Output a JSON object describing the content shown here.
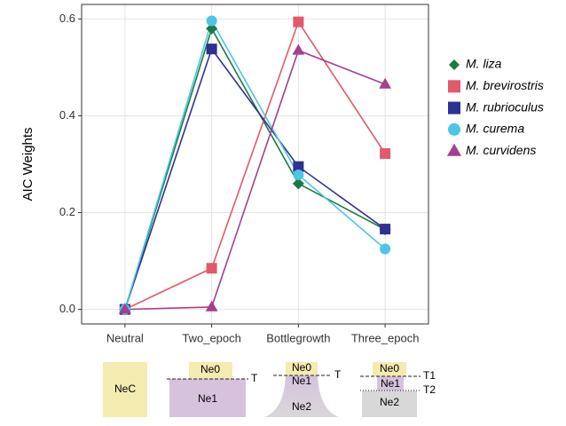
{
  "chart_data": {
    "type": "line",
    "y_label": "AIC Weights",
    "categories": [
      "Neutral",
      "Two_epoch",
      "Bottlegrowth",
      "Three_epoch"
    ],
    "series": [
      {
        "name": "M. liza",
        "color": "#1b7a3f",
        "marker": "diamond",
        "values": [
          0,
          0.58,
          0.26,
          0.165
        ]
      },
      {
        "name": "M. brevirostris",
        "color": "#e05a6c",
        "marker": "square",
        "values": [
          0,
          0.085,
          0.594,
          0.322
        ]
      },
      {
        "name": "M. rubrioculus",
        "color": "#2e3192",
        "marker": "square",
        "values": [
          0,
          0.538,
          0.295,
          0.166
        ]
      },
      {
        "name": "M. curema",
        "color": "#4cc5e6",
        "marker": "circle",
        "values": [
          0,
          0.596,
          0.278,
          0.125
        ]
      },
      {
        "name": "M. curvidens",
        "color": "#a63f8e",
        "marker": "triangle",
        "values": [
          0,
          0.005,
          0.535,
          0.465
        ]
      }
    ],
    "ylim": [
      -0.03,
      0.63
    ],
    "yticks": [
      {
        "value": 0,
        "label": "0.0"
      },
      0.2,
      0.4,
      0.6
    ],
    "grid": true,
    "legend": "right"
  },
  "models": [
    {
      "labels": [
        "NeC"
      ]
    },
    {
      "labels": [
        "Ne0",
        "Ne1",
        "T"
      ]
    },
    {
      "labels": [
        "Ne0",
        "Ne1",
        "Ne2",
        "T"
      ]
    },
    {
      "labels": [
        "Ne0",
        "Ne1",
        "Ne2",
        "T1",
        "T2"
      ]
    }
  ]
}
